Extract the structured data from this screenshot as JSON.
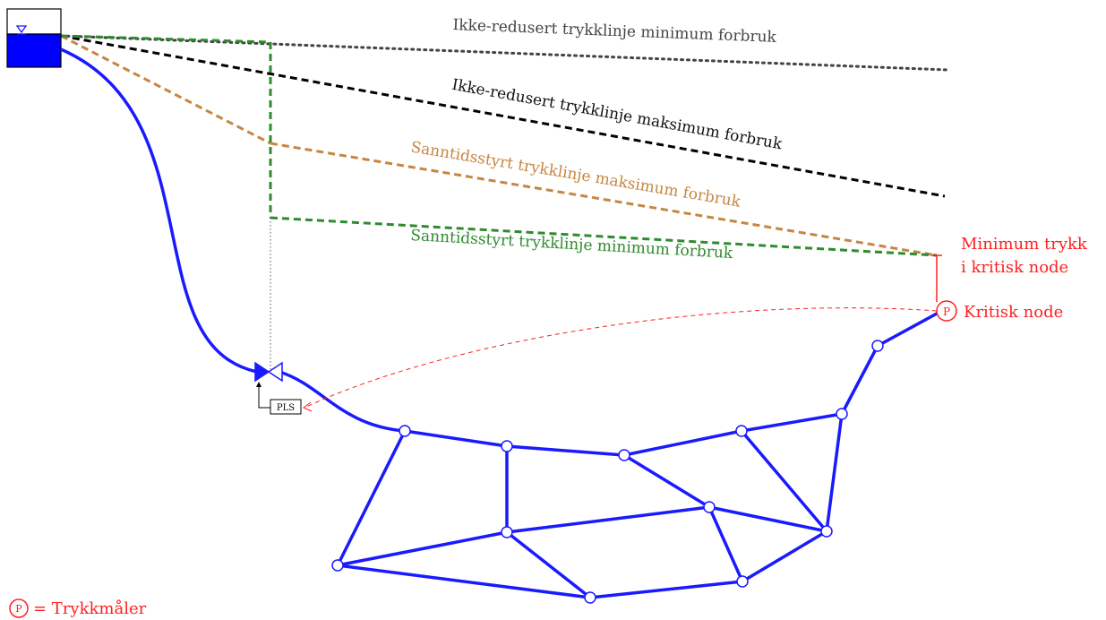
{
  "labels": {
    "ikke_min": "Ikke-redusert trykklinje minimum forbruk",
    "ikke_max": "Ikke-redusert trykklinje maksimum forbruk",
    "sann_max": "Sanntidsstyrt trykklinje maksimum forbruk",
    "sann_min": "Sanntidsstyrt trykklinje minimum forbruk",
    "min_trykk_1": "Minimum trykk",
    "min_trykk_2": "i kritisk node",
    "kritisk_node": "Kritisk node",
    "pls": "PLS",
    "legend_symbol": "P",
    "legend_text": "= Trykkmåler",
    "sensor_symbol": "P"
  },
  "colors": {
    "pipe": "#1a1aff",
    "reservoir_water": "#0000ff",
    "ikke_min_line": "#444444",
    "ikke_max_line": "#000000",
    "sann_max_line": "#c68642",
    "sann_min_line": "#2e8b2e",
    "critical": "#ff2020",
    "ikke_min_text": "#444444",
    "ikke_max_text": "#111111",
    "sann_max_text": "#c68642",
    "sann_min_text": "#2e8b2e"
  },
  "icons": {
    "reservoir": "reservoir-tank-icon",
    "valve": "pressure-reducing-valve-icon",
    "controller": "pls-controller-icon",
    "sensor": "pressure-sensor-icon"
  }
}
